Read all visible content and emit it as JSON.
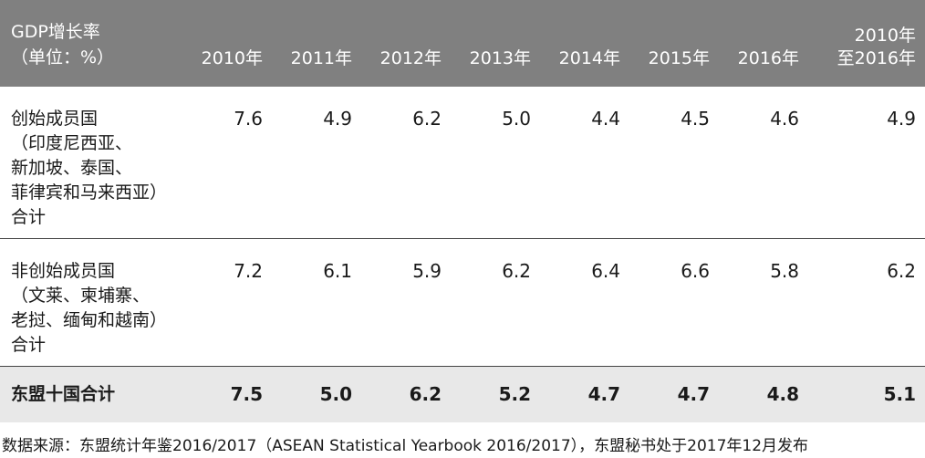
{
  "chart_data": {
    "type": "table",
    "columns": [
      "GDP增长率\n（单位：%）",
      "2010年",
      "2011年",
      "2012年",
      "2013年",
      "2014年",
      "2015年",
      "2016年",
      "2010年\n至2016年"
    ],
    "rows": [
      {
        "label": "创始成员国\n（印度尼西亚、\n新加坡、泰国、\n菲律宾和马来西亚）\n合计",
        "values": [
          "7.6",
          "4.9",
          "6.2",
          "5.0",
          "4.4",
          "4.5",
          "4.6",
          "4.9"
        ]
      },
      {
        "label": "非创始成员国\n（文莱、柬埔寨、\n老挝、缅甸和越南）\n合计",
        "values": [
          "7.2",
          "6.1",
          "5.9",
          "6.2",
          "6.4",
          "6.6",
          "5.8",
          "6.2"
        ]
      },
      {
        "label": "东盟十国合计",
        "values": [
          "7.5",
          "5.0",
          "6.2",
          "5.2",
          "4.7",
          "4.7",
          "4.8",
          "5.1"
        ]
      }
    ],
    "header_color": "#808080",
    "total_row_color": "#e8e8e8"
  },
  "source_note": "数据来源：东盟统计年鉴2016/2017（ASEAN Statistical Yearbook 2016/2017），东盟秘书处于2017年12月发布"
}
